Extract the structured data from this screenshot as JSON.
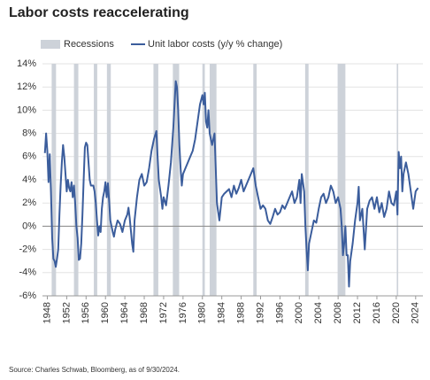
{
  "chart_data": {
    "type": "line",
    "title": "Labor costs reaccelerating",
    "source": "Source: Charles Schwab, Bloomberg, as of 9/30/2024.",
    "grid": true,
    "xlim": [
      1947,
      2025.5
    ],
    "xticks": [
      1948,
      1952,
      1956,
      1960,
      1964,
      1968,
      1972,
      1976,
      1980,
      1984,
      1988,
      1992,
      1996,
      2000,
      2004,
      2008,
      2012,
      2016,
      2020,
      2024
    ],
    "ylim": [
      -6,
      14
    ],
    "yticks": [
      {
        "value": -6,
        "label": "-6%"
      },
      {
        "value": -4,
        "label": "-4%"
      },
      {
        "value": -2,
        "label": "-2%"
      },
      {
        "value": 0,
        "label": "0%"
      },
      {
        "value": 2,
        "label": "2%"
      },
      {
        "value": 4,
        "label": "4%"
      },
      {
        "value": 6,
        "label": "6%"
      },
      {
        "value": 8,
        "label": "8%"
      },
      {
        "value": 10,
        "label": "10%"
      },
      {
        "value": 12,
        "label": "12%"
      },
      {
        "value": 14,
        "label": "14%"
      }
    ],
    "series": [
      {
        "name": "Recessions",
        "color": "#cdd2d9",
        "ranges": [
          [
            1948.9,
            1949.8
          ],
          [
            1953.5,
            1954.4
          ],
          [
            1957.6,
            1958.3
          ],
          [
            1960.3,
            1961.1
          ],
          [
            1969.9,
            1970.9
          ],
          [
            1973.9,
            1975.2
          ],
          [
            1980.0,
            1980.5
          ],
          [
            1981.5,
            1982.9
          ],
          [
            1990.5,
            1991.2
          ],
          [
            2001.2,
            2001.9
          ],
          [
            2007.9,
            2009.5
          ],
          [
            2020.1,
            2020.4
          ]
        ]
      },
      {
        "name": "Unit labor costs (y/y % change)",
        "color": "#3b5d9c",
        "x": [
          1947.5,
          1947.75,
          1948,
          1948.25,
          1948.5,
          1948.75,
          1949,
          1949.25,
          1949.5,
          1949.75,
          1950,
          1950.25,
          1950.5,
          1950.75,
          1951,
          1951.25,
          1951.5,
          1951.75,
          1952,
          1952.25,
          1952.5,
          1952.75,
          1953,
          1953.25,
          1953.5,
          1953.75,
          1954,
          1954.25,
          1954.5,
          1954.75,
          1955,
          1955.25,
          1955.5,
          1955.75,
          1956,
          1956.25,
          1956.5,
          1956.75,
          1957,
          1957.5,
          1957.75,
          1958,
          1958.25,
          1958.5,
          1958.75,
          1959,
          1959.25,
          1959.5,
          1959.75,
          1960,
          1960.25,
          1960.5,
          1960.75,
          1961,
          1961.5,
          1961.75,
          1962,
          1962.5,
          1963,
          1963.5,
          1964,
          1964.5,
          1964.75,
          1965,
          1965.5,
          1965.75,
          1966,
          1966.5,
          1967,
          1967.5,
          1968,
          1968.5,
          1969,
          1969.5,
          1970,
          1970.5,
          1970.75,
          1971,
          1971.5,
          1971.75,
          1972,
          1972.5,
          1973,
          1973.5,
          1974,
          1974.25,
          1974.5,
          1974.75,
          1975,
          1975.25,
          1975.5,
          1975.75,
          1976,
          1976.5,
          1977,
          1977.5,
          1978,
          1978.5,
          1979,
          1979.5,
          1980,
          1980.25,
          1980.5,
          1980.75,
          1981,
          1981.25,
          1981.5,
          1982,
          1982.5,
          1982.75,
          1983,
          1983.5,
          1983.75,
          1984,
          1984.5,
          1985,
          1985.5,
          1986,
          1986.5,
          1987,
          1987.5,
          1988,
          1988.5,
          1989,
          1989.5,
          1990,
          1990.5,
          1991,
          1991.5,
          1992,
          1992.5,
          1993,
          1993.5,
          1994,
          1994.5,
          1995,
          1995.5,
          1996,
          1996.5,
          1997,
          1997.5,
          1998,
          1998.5,
          1999,
          1999.5,
          2000,
          2000.25,
          2000.5,
          2001,
          2001.25,
          2001.5,
          2001.75,
          2002,
          2002.5,
          2003,
          2003.5,
          2004,
          2004.5,
          2005,
          2005.5,
          2006,
          2006.5,
          2007,
          2007.5,
          2008,
          2008.5,
          2008.75,
          2009,
          2009.25,
          2009.5,
          2009.75,
          2010,
          2010.25,
          2010.5,
          2011,
          2011.5,
          2012,
          2012.25,
          2012.5,
          2013,
          2013.5,
          2014,
          2014.5,
          2015,
          2015.5,
          2016,
          2016.5,
          2017,
          2017.5,
          2018,
          2018.5,
          2019,
          2019.5,
          2020,
          2020.25,
          2020.5,
          2020.75,
          2021,
          2021.25,
          2021.5,
          2022,
          2022.5,
          2023,
          2023.5,
          2024,
          2024.5
        ],
        "values": [
          6.3,
          8,
          6.5,
          3.8,
          6.2,
          3,
          -1,
          -2.8,
          -3,
          -3.5,
          -2.8,
          -2,
          1,
          3.5,
          5.5,
          7,
          6,
          4.5,
          3,
          4,
          3.3,
          3,
          3.8,
          2.5,
          3.5,
          2,
          0,
          -1,
          -2.9,
          -2.8,
          -1.5,
          1,
          4,
          6.8,
          7.2,
          7,
          5.5,
          4,
          3.5,
          3.5,
          3,
          2,
          0.5,
          -0.8,
          0,
          -0.5,
          1.5,
          2.5,
          3,
          3.8,
          2.5,
          3.7,
          2.2,
          0.5,
          -0.5,
          -0.9,
          -0.3,
          0.5,
          0.2,
          -0.5,
          0.5,
          1,
          1.6,
          0.7,
          -1.5,
          -2.2,
          0.5,
          2.5,
          4,
          4.5,
          3.5,
          3.8,
          5,
          6.5,
          7.5,
          8.2,
          6,
          4,
          2.5,
          1.5,
          2.5,
          1.8,
          3.5,
          5.5,
          8.5,
          10.5,
          12.5,
          12,
          10,
          7,
          5,
          3.5,
          4.5,
          5,
          5.5,
          6,
          6.5,
          7.5,
          9,
          10.5,
          11.3,
          10.5,
          11.5,
          9,
          8.5,
          10,
          8,
          7,
          8,
          5,
          2,
          0.5,
          1.5,
          2.5,
          2.8,
          3,
          3.2,
          2.5,
          3.5,
          2.8,
          3.3,
          4,
          3,
          3.5,
          4,
          4.5,
          5,
          3.5,
          2.5,
          1.5,
          1.8,
          1.5,
          0.5,
          0.2,
          0.8,
          1.5,
          1,
          1.2,
          1.8,
          1.5,
          2,
          2.5,
          3,
          2,
          2.5,
          4,
          2,
          4.5,
          3,
          0,
          -2,
          -3.8,
          -1.5,
          -0.5,
          0.5,
          0.3,
          1.5,
          2.5,
          2.8,
          2,
          2.5,
          3.5,
          3,
          2,
          2.5,
          1.5,
          0,
          -2.5,
          -1.5,
          0,
          -2.5,
          -2.5,
          -5.2,
          -3,
          -1.5,
          0.5,
          2,
          3.4,
          0.5,
          1.5,
          -2,
          1.5,
          2.2,
          2.5,
          1.5,
          2.5,
          1.2,
          2,
          0.8,
          1.5,
          3,
          2,
          1.8,
          3,
          1,
          6.4,
          5,
          6,
          3,
          4.5,
          5.5,
          4.5,
          3,
          1.5,
          3,
          3.3
        ]
      }
    ]
  }
}
